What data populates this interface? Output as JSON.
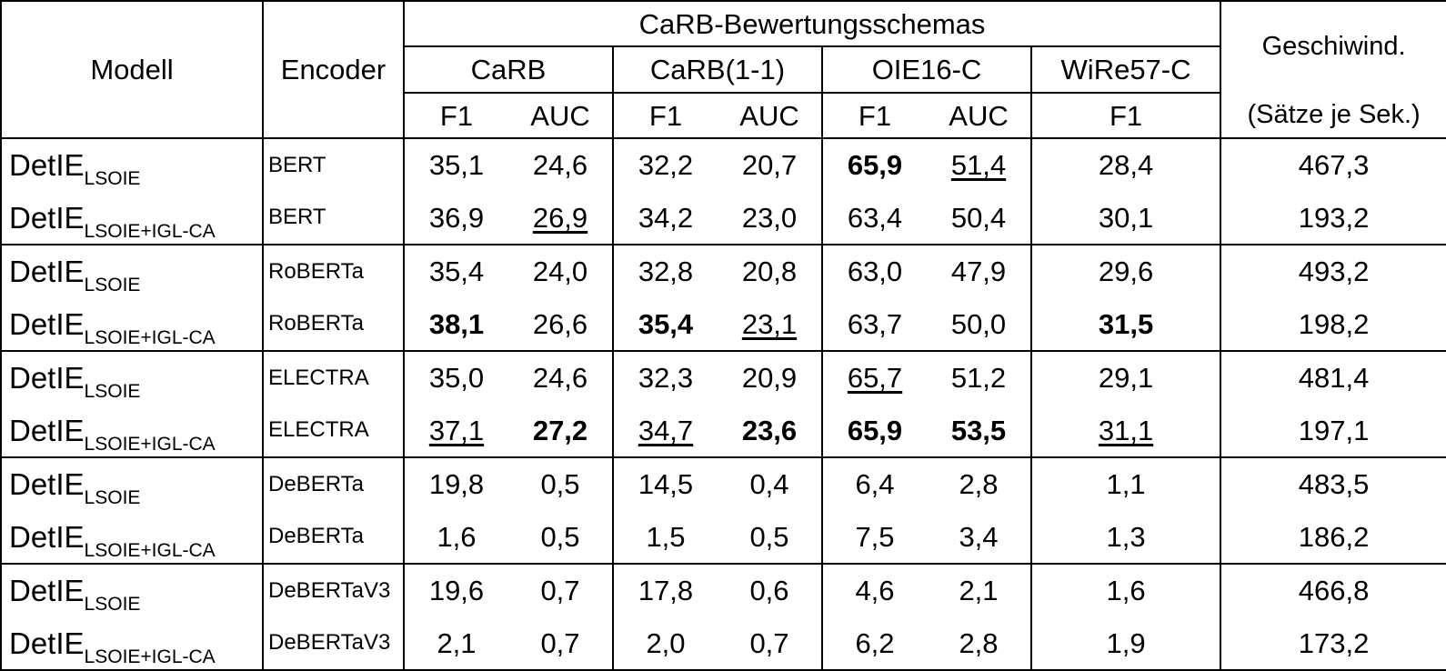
{
  "header": {
    "modell": "Modell",
    "encoder": "Encoder",
    "schemas": "CaRB-Bewertungsschemas",
    "speed_line1": "Geschiwind.",
    "speed_line2": "(Sätze je Sek.)",
    "carb": "CaRB",
    "carb11": "CaRB(1-1)",
    "oie16": "OIE16-C",
    "wire57": "WiRe57-C",
    "f1": "F1",
    "auc": "AUC"
  },
  "rows": [
    {
      "model": "DetIE",
      "sub": "LSOIE",
      "encoder": "BERT",
      "carb_f1": "35,1",
      "carb_auc": "24,6",
      "carb11_f1": "32,2",
      "carb11_auc": "20,7",
      "oie_f1": "65,9",
      "oie_auc": "51,4",
      "wire_f1": "28,4",
      "speed": "467,3"
    },
    {
      "model": "DetIE",
      "sub": "LSOIE+IGL-CA",
      "encoder": "BERT",
      "carb_f1": "36,9",
      "carb_auc": "26,9",
      "carb11_f1": "34,2",
      "carb11_auc": "23,0",
      "oie_f1": "63,4",
      "oie_auc": "50,4",
      "wire_f1": "30,1",
      "speed": "193,2"
    },
    {
      "model": "DetIE",
      "sub": "LSOIE",
      "encoder": "RoBERTa",
      "carb_f1": "35,4",
      "carb_auc": "24,0",
      "carb11_f1": "32,8",
      "carb11_auc": "20,8",
      "oie_f1": "63,0",
      "oie_auc": "47,9",
      "wire_f1": "29,6",
      "speed": "493,2"
    },
    {
      "model": "DetIE",
      "sub": "LSOIE+IGL-CA",
      "encoder": "RoBERTa",
      "carb_f1": "38,1",
      "carb_auc": "26,6",
      "carb11_f1": "35,4",
      "carb11_auc": "23,1",
      "oie_f1": "63,7",
      "oie_auc": "50,0",
      "wire_f1": "31,5",
      "speed": "198,2"
    },
    {
      "model": "DetIE",
      "sub": "LSOIE",
      "encoder": "ELECTRA",
      "carb_f1": "35,0",
      "carb_auc": "24,6",
      "carb11_f1": "32,3",
      "carb11_auc": "20,9",
      "oie_f1": "65,7",
      "oie_auc": "51,2",
      "wire_f1": "29,1",
      "speed": "481,4"
    },
    {
      "model": "DetIE",
      "sub": "LSOIE+IGL-CA",
      "encoder": "ELECTRA",
      "carb_f1": "37,1",
      "carb_auc": "27,2",
      "carb11_f1": "34,7",
      "carb11_auc": "23,6",
      "oie_f1": "65,9",
      "oie_auc": "53,5",
      "wire_f1": "31,1",
      "speed": "197,1"
    },
    {
      "model": "DetIE",
      "sub": "LSOIE",
      "encoder": "DeBERTa",
      "carb_f1": "19,8",
      "carb_auc": "0,5",
      "carb11_f1": "14,5",
      "carb11_auc": "0,4",
      "oie_f1": "6,4",
      "oie_auc": "2,8",
      "wire_f1": "1,1",
      "speed": "483,5"
    },
    {
      "model": "DetIE",
      "sub": "LSOIE+IGL-CA",
      "encoder": "DeBERTa",
      "carb_f1": "1,6",
      "carb_auc": "0,5",
      "carb11_f1": "1,5",
      "carb11_auc": "0,5",
      "oie_f1": "7,5",
      "oie_auc": "3,4",
      "wire_f1": "1,3",
      "speed": "186,2"
    },
    {
      "model": "DetIE",
      "sub": "LSOIE",
      "encoder": "DeBERTaV3",
      "carb_f1": "19,6",
      "carb_auc": "0,7",
      "carb11_f1": "17,8",
      "carb11_auc": "0,6",
      "oie_f1": "4,6",
      "oie_auc": "2,1",
      "wire_f1": "1,6",
      "speed": "466,8"
    },
    {
      "model": "DetIE",
      "sub": "LSOIE+IGL-CA",
      "encoder": "DeBERTaV3",
      "carb_f1": "2,1",
      "carb_auc": "0,7",
      "carb11_f1": "2,0",
      "carb11_auc": "0,7",
      "oie_f1": "6,2",
      "oie_auc": "2,8",
      "wire_f1": "1,9",
      "speed": "173,2"
    }
  ]
}
